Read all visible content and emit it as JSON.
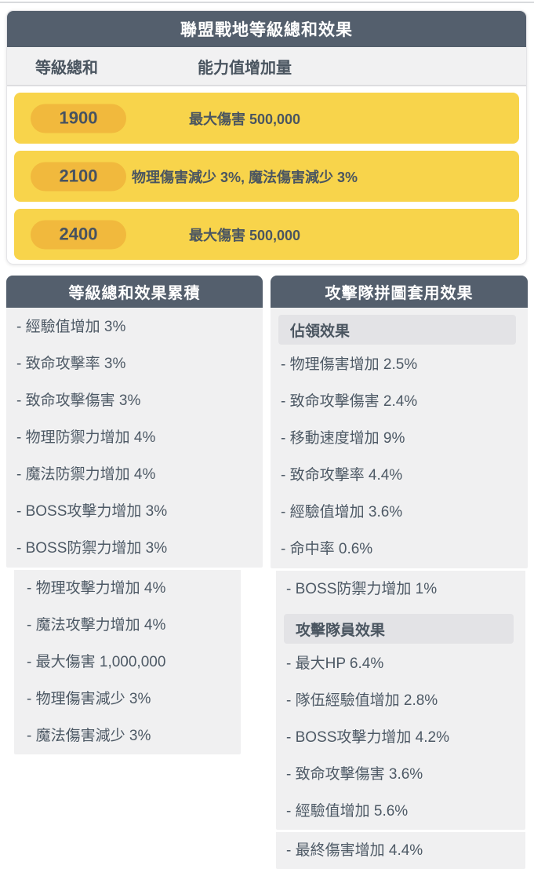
{
  "table": {
    "title": "聯盟戰地等級總和效果",
    "col1": "等級總和",
    "col2": "能力值增加量",
    "rows": [
      {
        "level": "1900",
        "effect": "最大傷害 500,000"
      },
      {
        "level": "2100",
        "effect": "物理傷害減少 3%, 魔法傷害減少 3%"
      },
      {
        "level": "2400",
        "effect": "最大傷害 500,000"
      }
    ]
  },
  "left_panel": {
    "title": "等級總和效果累積",
    "card1_items": [
      "- 經驗值增加 3%",
      "- 致命攻擊率 3%",
      "- 致命攻擊傷害 3%",
      "- 物理防禦力增加 4%",
      "- 魔法防禦力增加 4%",
      "- BOSS攻擊力增加 3%",
      "- BOSS防禦力增加 3%"
    ],
    "card2_items": [
      "- 物理攻擊力增加 4%",
      "- 魔法攻擊力增加 4%",
      "- 最大傷害 1,000,000",
      "- 物理傷害減少 3%",
      "- 魔法傷害減少 3%"
    ]
  },
  "right_panel": {
    "title": "攻擊隊拼圖套用效果",
    "card1_header": "佔領效果",
    "card1_items": [
      "- 物理傷害增加 2.5%",
      "- 致命攻擊傷害 2.4%",
      "- 移動速度增加 9%",
      "- 致命攻擊率 4.4%",
      "- 經驗值增加 3.6%",
      "- 命中率 0.6%"
    ],
    "card2_lead_item": "- BOSS防禦力增加 1%",
    "card2_header": "攻擊隊員效果",
    "card2_items": [
      "- 最大HP 6.4%",
      "- 隊伍經驗值增加 2.8%",
      "- BOSS攻擊力增加 4.2%",
      "- 致命攻擊傷害 3.6%",
      "- 經驗值增加 5.6%"
    ],
    "card3_item": "- 最終傷害增加 4.4%"
  },
  "colors": {
    "header_bg": "#545F6D",
    "row_yellow": "#F8D44B",
    "badge_yellow": "#F1B93D",
    "panel_body_bg": "#F0F0F1",
    "section_box_bg": "#E3E3E6",
    "column_row_bg": "#F1F1F2",
    "text_dark": "#4A5560",
    "header_text": "#FFFFFF"
  }
}
